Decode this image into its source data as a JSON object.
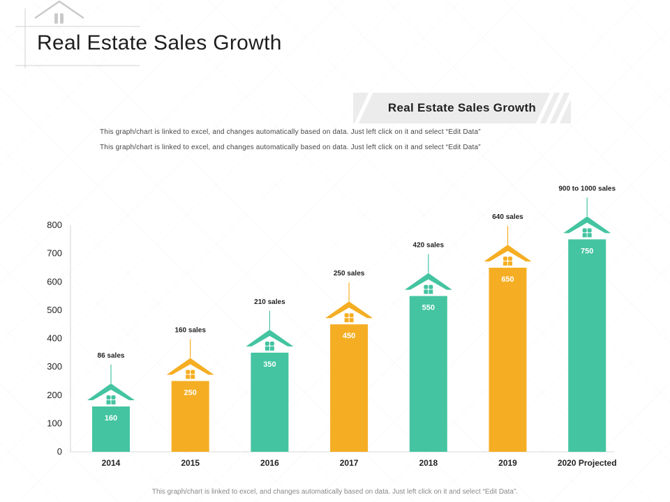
{
  "page": {
    "title": "Real Estate Sales Growth",
    "banner_title": "Real Estate Sales Growth",
    "description_lines": [
      "This graph/chart  is linked to excel, and changes automatically  based  on data.  Just left click on it and select “Edit Data”",
      "This graph/chart  is linked to excel, and changes automatically  based  on data.  Just left click on it and select “Edit Data”"
    ],
    "footer_note": "This graph/chart is linked to excel, and changes automatically based on data. Just left click on it and select “Edit Data”."
  },
  "chart_data": {
    "type": "bar",
    "title": "Real Estate Sales Growth",
    "xlabel": "",
    "ylabel": "",
    "ylim": [
      0,
      800
    ],
    "yticks": [
      0,
      100,
      200,
      300,
      400,
      500,
      600,
      700,
      800
    ],
    "grid": false,
    "categories": [
      "2014",
      "2015",
      "2016",
      "2017",
      "2018",
      "2019",
      "2020 Projected"
    ],
    "values": [
      160,
      250,
      350,
      450,
      550,
      650,
      750
    ],
    "data_labels": [
      "160",
      "250",
      "350",
      "450",
      "550",
      "650",
      "750"
    ],
    "annotations": [
      "86 sales",
      "160 sales",
      "210 sales",
      "250 sales",
      "420 sales",
      "640 sales",
      "900 to 1000 sales"
    ],
    "colors": [
      "#44c4a1",
      "#f5ae23",
      "#44c4a1",
      "#f5ae23",
      "#44c4a1",
      "#f5ae23",
      "#44c4a1"
    ]
  }
}
